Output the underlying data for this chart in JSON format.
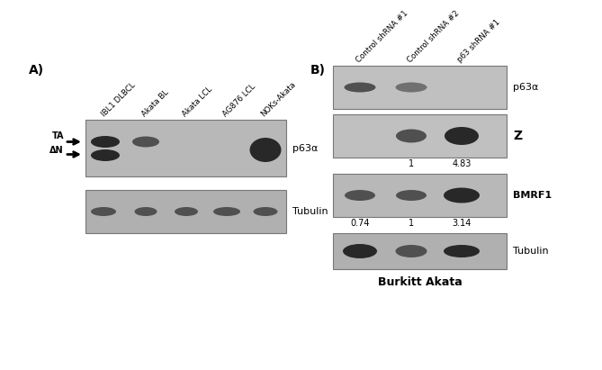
{
  "panel_A_label": "A)",
  "panel_B_label": "B)",
  "panel_A_col_labels": [
    "IBL1 DLBCL",
    "Akata BL",
    "Akata LCL",
    "AG876 LCL",
    "NOKs-Akata"
  ],
  "panel_A_row_labels": [
    "p63α",
    "Tubulin"
  ],
  "panel_A_arrow_labels": [
    "TA",
    "ΔN"
  ],
  "panel_B_col_labels": [
    "Control shRNA #1",
    "Control shRNA #2",
    "p63 shRNA #1"
  ],
  "panel_B_row_labels": [
    "p63α",
    "Z",
    "BMRF1",
    "Tubulin"
  ],
  "panel_B_Z_numbers": [
    "1",
    "4.83"
  ],
  "panel_B_BMRF1_numbers": [
    "0.74",
    "1",
    "3.14"
  ],
  "panel_B_bottom_label": "Burkitt Akata",
  "bg_color": "#ffffff",
  "blot_bg_A_p63": "#b8b8b8",
  "blot_bg_A_tub": "#b0b0b0",
  "blot_bg_B_p63": "#c0c0c0",
  "blot_bg_B_Z": "#c0c0c0",
  "blot_bg_B_bmrf": "#b8b8b8",
  "blot_bg_B_tub": "#b0b0b0",
  "band_dark": "#282828",
  "band_mid": "#505050",
  "band_light": "#707070"
}
